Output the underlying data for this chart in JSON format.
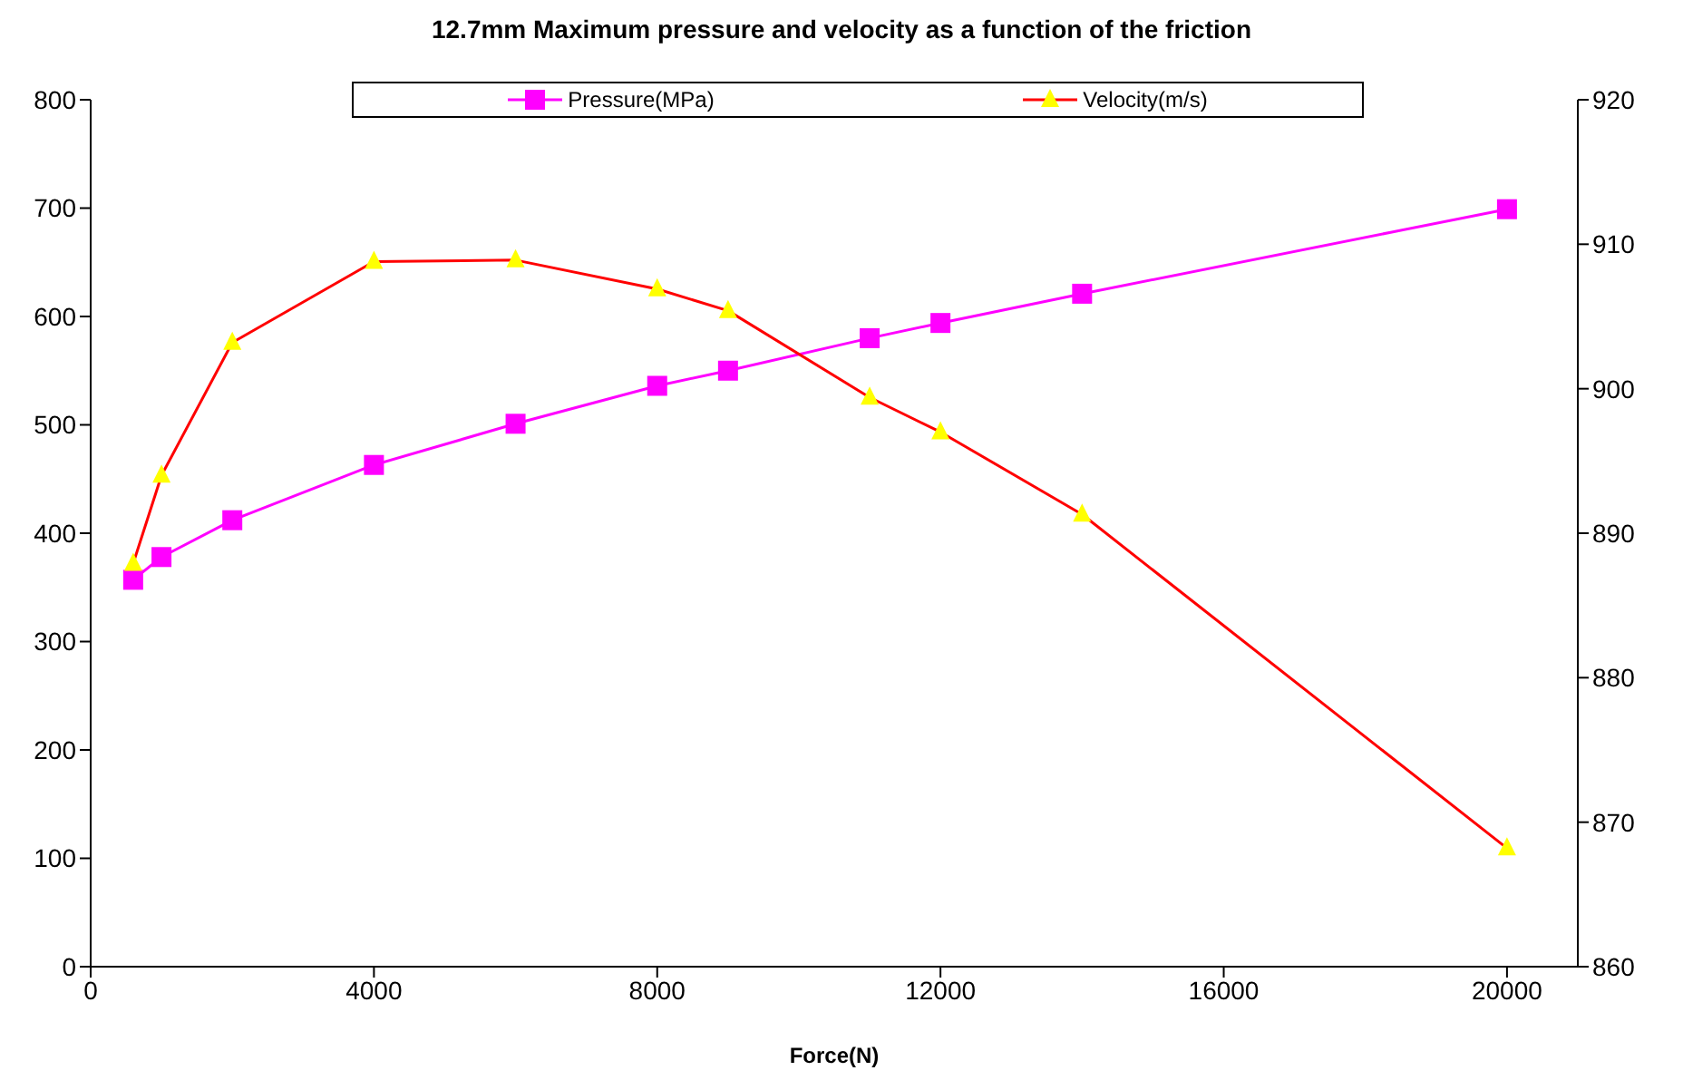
{
  "chart_data": {
    "type": "line",
    "title": "12.7mm Maximum pressure and velocity as a function of the friction",
    "xlabel": "Force(N)",
    "x": [
      600,
      1000,
      2000,
      4000,
      6000,
      8000,
      9000,
      11000,
      12000,
      14000,
      20000
    ],
    "series": [
      {
        "name": "Pressure(MPa)",
        "color": "#ff00ff",
        "marker": "square",
        "values": [
          357,
          378,
          412,
          463,
          501,
          536,
          550,
          580,
          594,
          621,
          699
        ]
      },
      {
        "name": "Velocity(m/s)",
        "color": "#ff0000",
        "marker": "triangle",
        "axis": "y2",
        "colors": [
          "#ffff00",
          "#ffff00",
          "#ffff00",
          "#ffff00",
          "#ffff00",
          "#ffff00",
          "#ffff00",
          "#ffff00",
          "#ffff00",
          "#ffff00",
          "#ffff00"
        ],
        "values": [
          887.9,
          894.0,
          903.2,
          908.8,
          908.9,
          906.9,
          905.4,
          899.4,
          897.0,
          891.3,
          868.2
        ]
      }
    ],
    "xlim": [
      0,
      21000
    ],
    "xticks": [
      0,
      4000,
      8000,
      12000,
      16000,
      20000
    ],
    "ylim": [
      0,
      800
    ],
    "yticks": [
      0,
      100,
      200,
      300,
      400,
      500,
      600,
      700,
      800
    ],
    "y2lim": [
      860,
      920
    ],
    "y2ticks": [
      860,
      870,
      880,
      890,
      900,
      910,
      920
    ],
    "grid": false,
    "legend": "top",
    "line_style": "solid"
  }
}
